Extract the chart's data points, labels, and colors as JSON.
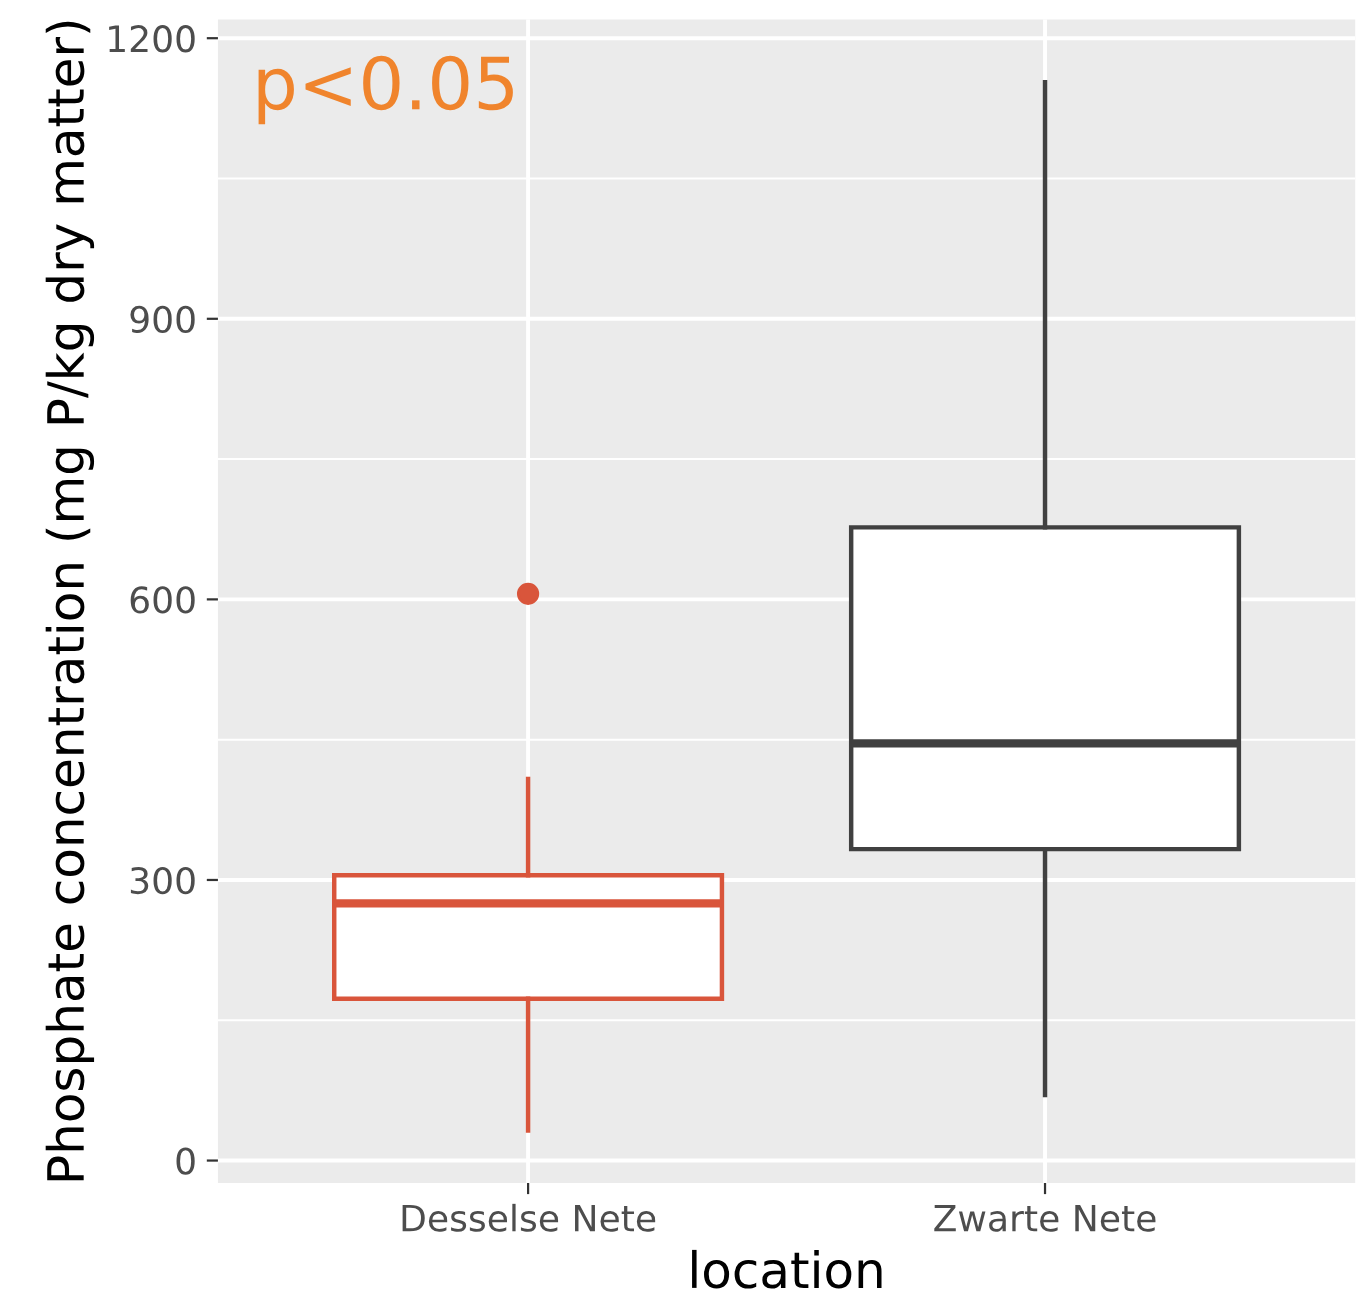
{
  "chart_data": {
    "type": "box",
    "xlabel": "location",
    "ylabel": "Phosphate concentration (mg P/kg dry matter)",
    "categories": [
      "Desselse Nete",
      "Zwarte Nete"
    ],
    "series": [
      {
        "color": "#d9553b",
        "boxes": [
          {
            "low": 32,
            "q1": 173,
            "median": 275,
            "q3": 305,
            "high": 408,
            "outliers": [
              606
            ]
          },
          null
        ]
      },
      {
        "color": "#404040",
        "boxes": [
          null,
          {
            "low": 70,
            "q1": 333,
            "median": 446,
            "q3": 677,
            "high": 1153
          }
        ]
      }
    ],
    "ylim": [
      -24,
      1220
    ],
    "yticks": [
      0,
      300,
      600,
      900,
      1200
    ],
    "grid": true,
    "legend": false,
    "annotations": [
      "p<0.05"
    ]
  }
}
